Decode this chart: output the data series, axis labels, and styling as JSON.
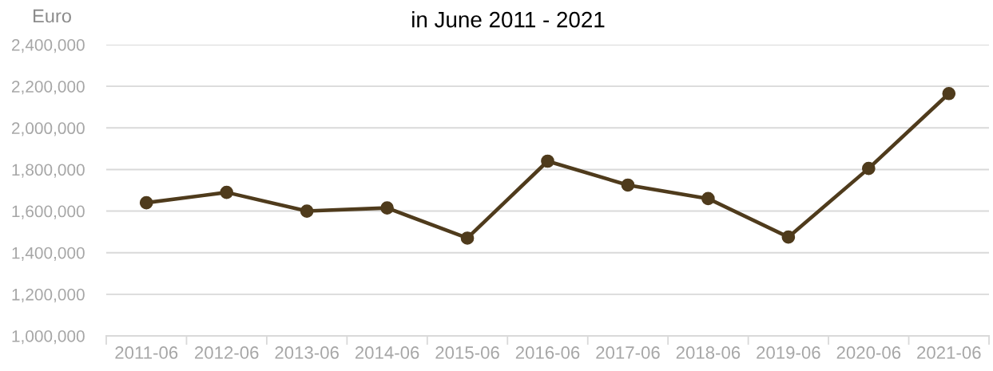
{
  "chart_data": {
    "type": "line",
    "title": "in June 2011 - 2021",
    "ylabel": "Euro",
    "categories": [
      "2011-06",
      "2012-06",
      "2013-06",
      "2014-06",
      "2015-06",
      "2016-06",
      "2017-06",
      "2018-06",
      "2019-06",
      "2020-06",
      "2021-06"
    ],
    "series": [
      {
        "color": "#4f3b1c",
        "values": [
          1640000,
          1690000,
          1600000,
          1615000,
          1470000,
          1840000,
          1725000,
          1660000,
          1475000,
          1805000,
          2165000
        ]
      }
    ],
    "ylim": [
      1000000,
      2400000
    ],
    "yticks": [
      {
        "value": 1000000,
        "label": "1,000,000"
      },
      {
        "value": 1200000,
        "label": "1,200,000"
      },
      {
        "value": 1400000,
        "label": "1,400,000"
      },
      {
        "value": 1600000,
        "label": "1,600,000"
      },
      {
        "value": 1800000,
        "label": "1,800,000"
      },
      {
        "value": 2000000,
        "label": "2,000,000"
      },
      {
        "value": 2200000,
        "label": "2,200,000"
      },
      {
        "value": 2400000,
        "label": "2,400,000"
      }
    ],
    "grid": "y",
    "marker": "circle",
    "line_style": "solid"
  }
}
